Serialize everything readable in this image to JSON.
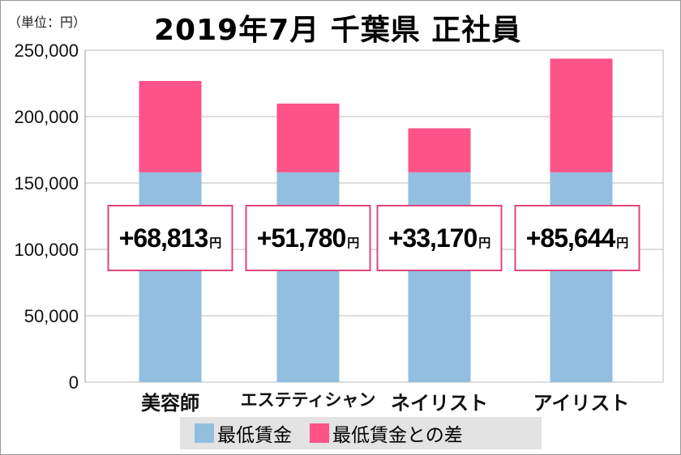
{
  "unit_label": "（単位：円）",
  "title": "2019年7月 千葉県 正社員",
  "colors": {
    "base": "#92bfe0",
    "diff": "#fd5389",
    "label_border": "#e0457b"
  },
  "chart_data": {
    "type": "bar",
    "stacked": true,
    "title": "2019年7月 千葉県 正社員",
    "ylabel": "（単位：円）",
    "ylim": [
      0,
      250000
    ],
    "yticks": [
      "0",
      "50,000",
      "100,000",
      "150,000",
      "200,000",
      "250,000"
    ],
    "grid": true,
    "legend_position": "bottom",
    "categories": [
      "美容師",
      "エステティシャン",
      "ネイリスト",
      "アイリスト"
    ],
    "series": [
      {
        "name": "最低賃金",
        "values": [
          158000,
          158000,
          158000,
          158000
        ]
      },
      {
        "name": "最低賃金との差",
        "values": [
          68813,
          51780,
          33170,
          85644
        ]
      }
    ],
    "data_labels": [
      "+68,813",
      "+51,780",
      "+33,170",
      "+85,644"
    ],
    "data_label_unit": "円"
  }
}
